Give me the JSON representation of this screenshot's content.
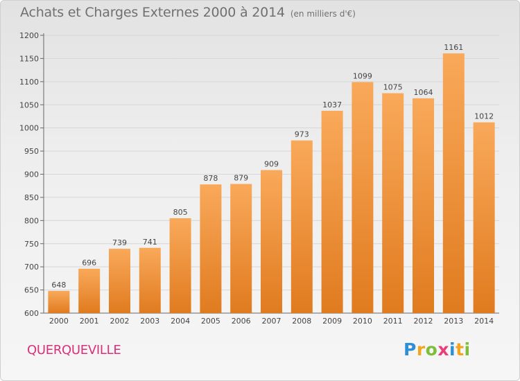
{
  "header": {
    "title": "Achats et Charges Externes 2000 à 2014",
    "subtitle": "(en milliers d'€)"
  },
  "footer": {
    "place": "QUERQUEVILLE",
    "logo_text": "Proxiti"
  },
  "colors": {
    "bar_light": "#f9a95a",
    "bar_dark": "#e07b1f",
    "place": "#d8307a"
  },
  "chart_data": {
    "type": "bar",
    "title": "Achats et Charges Externes 2000 à 2014",
    "subtitle": "(en milliers d'€)",
    "xlabel": "",
    "ylabel": "",
    "categories": [
      "2000",
      "2001",
      "2002",
      "2003",
      "2004",
      "2005",
      "2006",
      "2007",
      "2008",
      "2009",
      "2010",
      "2011",
      "2012",
      "2013",
      "2014"
    ],
    "values": [
      648,
      696,
      739,
      741,
      805,
      878,
      879,
      909,
      973,
      1037,
      1099,
      1075,
      1064,
      1161,
      1012
    ],
    "ylim": [
      600,
      1200
    ],
    "yticks": [
      600,
      650,
      700,
      750,
      800,
      850,
      900,
      950,
      1000,
      1050,
      1100,
      1150,
      1200
    ],
    "grid": true,
    "data_labels": true
  }
}
